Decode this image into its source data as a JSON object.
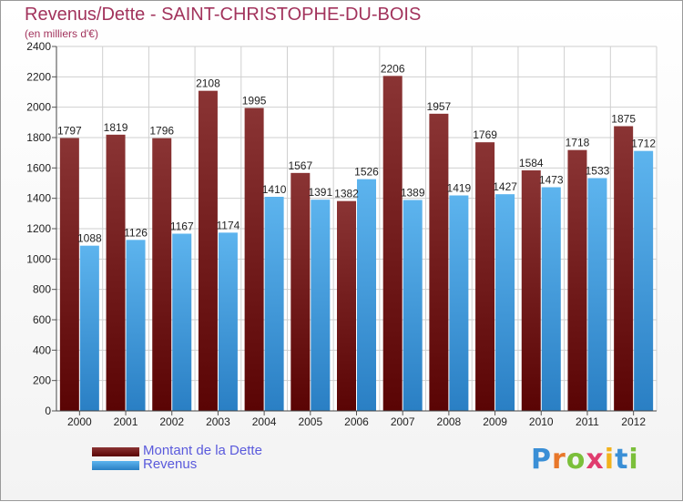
{
  "header": {
    "title": "Revenus/Dette - SAINT-CHRISTOPHE-DU-BOIS",
    "subtitle": "(en milliers d'€)"
  },
  "legend": {
    "items": [
      {
        "label": "Montant de la Dette",
        "color": "#7a1c1c"
      },
      {
        "label": "Revenus",
        "color": "#4ea6e6"
      }
    ]
  },
  "logo": {
    "text": "Proxiti",
    "letters": [
      "P",
      "r",
      "o",
      "x",
      "i",
      "t",
      "i"
    ],
    "colors": [
      "#3a8fd6",
      "#e8772a",
      "#7bbf3a",
      "#e03c6e",
      "#f2b21c",
      "#3a8fd6",
      "#7bbf3a"
    ]
  },
  "chart_data": {
    "type": "bar",
    "title": "Revenus/Dette - SAINT-CHRISTOPHE-DU-BOIS",
    "subtitle": "(en milliers d'€)",
    "xlabel": "",
    "ylabel": "",
    "categories": [
      "2000",
      "2001",
      "2002",
      "2003",
      "2004",
      "2005",
      "2006",
      "2007",
      "2008",
      "2009",
      "2010",
      "2011",
      "2012"
    ],
    "series": [
      {
        "name": "Montant de la Dette",
        "color": "#7a1c1c",
        "values": [
          1797,
          1819,
          1796,
          2108,
          1995,
          1567,
          1382,
          2206,
          1957,
          1769,
          1584,
          1718,
          1875
        ]
      },
      {
        "name": "Revenus",
        "color": "#4ea6e6",
        "values": [
          1088,
          1126,
          1167,
          1174,
          1410,
          1391,
          1526,
          1389,
          1419,
          1427,
          1473,
          1533,
          1712
        ]
      }
    ],
    "ylim": [
      0,
      2400
    ],
    "yticks": [
      0,
      200,
      400,
      600,
      800,
      1000,
      1200,
      1400,
      1600,
      1800,
      2000,
      2200,
      2400
    ],
    "grid": true,
    "legend": "bottom-left"
  }
}
